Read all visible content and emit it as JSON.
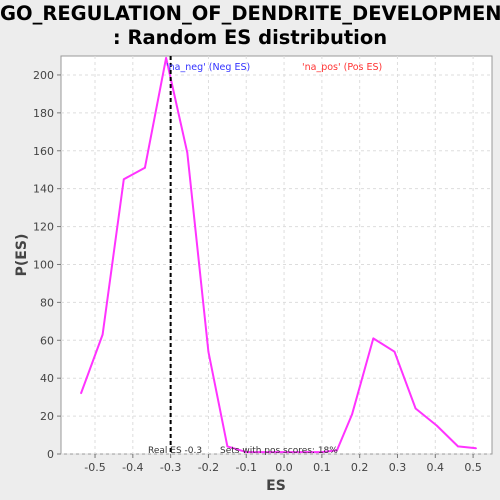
{
  "chart_data": {
    "type": "line",
    "title_lines": [
      "GO_REGULATION_OF_DENDRITE_DEVELOPMENT",
      ": Random ES distribution"
    ],
    "xlabel": "ES",
    "ylabel": "P(ES)",
    "xlim": [
      -0.59,
      0.55
    ],
    "ylim": [
      0,
      210
    ],
    "xticks": [
      -0.5,
      -0.4,
      -0.3,
      -0.2,
      -0.1,
      0.0,
      0.1,
      0.2,
      0.3,
      0.4,
      0.5
    ],
    "xtick_labels": [
      "-0.5",
      "-0.4",
      "-0.3",
      "-0.2",
      "-0.1",
      "0.0",
      "0.1",
      "0.2",
      "0.3",
      "0.4",
      "0.5"
    ],
    "yticks": [
      0,
      20,
      40,
      60,
      80,
      100,
      120,
      140,
      160,
      180,
      200
    ],
    "ytick_labels": [
      "0",
      "20",
      "40",
      "60",
      "80",
      "100",
      "120",
      "140",
      "160",
      "180",
      "200"
    ],
    "grid": true,
    "series": [
      {
        "color": "#ff33ff",
        "x": [
          -0.537,
          -0.48,
          -0.424,
          -0.368,
          -0.312,
          -0.256,
          -0.2,
          -0.15,
          -0.1,
          -0.05,
          0.0,
          0.05,
          0.1,
          0.14,
          0.18,
          0.236,
          0.292,
          0.348,
          0.404,
          0.46,
          0.508
        ],
        "y": [
          32,
          63,
          145,
          151,
          209,
          159,
          54,
          4,
          1,
          1,
          1,
          1,
          1,
          2,
          21,
          61,
          54,
          24,
          15,
          4,
          3
        ]
      }
    ],
    "real_es_line": {
      "x": -0.3,
      "color": "#000000",
      "style": "dashed"
    },
    "annotations": {
      "neg_label": "'na_neg' (Neg ES)",
      "neg_color": "#3333ff",
      "pos_label": "'na_pos' (Pos ES)",
      "pos_color": "#ff3333",
      "real_es_text": "Real ES -0.3",
      "pos_scores_text": "Sets with pos scores: 18%"
    }
  }
}
